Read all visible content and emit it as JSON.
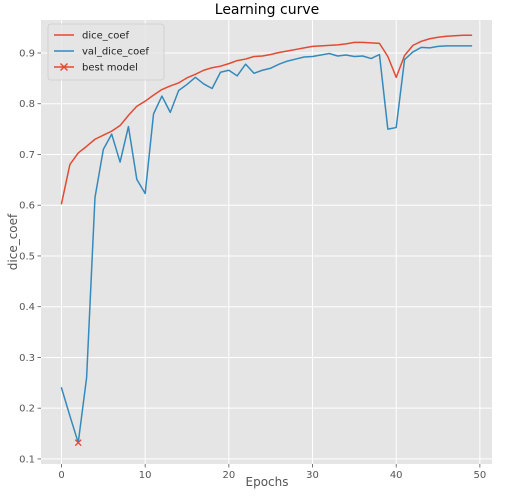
{
  "chart_data": {
    "type": "line",
    "title": "Learning curve",
    "xlabel": "Epochs",
    "ylabel": "dice_coef",
    "xlim": [
      -2.45,
      51.45
    ],
    "ylim": [
      0.09,
      0.965
    ],
    "xticks": [
      0,
      10,
      20,
      30,
      40,
      50
    ],
    "yticks": [
      0.1,
      0.2,
      0.3,
      0.4,
      0.5,
      0.6,
      0.7,
      0.8,
      0.9
    ],
    "grid": true,
    "legend_position": "top-left",
    "series": [
      {
        "name": "dice_coef",
        "color": "#E24A33",
        "x": [
          0,
          1,
          2,
          3,
          4,
          5,
          6,
          7,
          8,
          9,
          10,
          11,
          12,
          13,
          14,
          15,
          16,
          17,
          18,
          19,
          20,
          21,
          22,
          23,
          24,
          25,
          26,
          27,
          28,
          29,
          30,
          31,
          32,
          33,
          34,
          35,
          36,
          37,
          38,
          39,
          40,
          41,
          42,
          43,
          44,
          45,
          46,
          47,
          48,
          49
        ],
        "y": [
          0.603,
          0.68,
          0.703,
          0.716,
          0.73,
          0.738,
          0.746,
          0.757,
          0.777,
          0.795,
          0.805,
          0.817,
          0.828,
          0.835,
          0.841,
          0.851,
          0.858,
          0.866,
          0.871,
          0.874,
          0.879,
          0.885,
          0.888,
          0.893,
          0.894,
          0.897,
          0.901,
          0.904,
          0.907,
          0.91,
          0.913,
          0.914,
          0.915,
          0.916,
          0.918,
          0.921,
          0.921,
          0.92,
          0.919,
          0.893,
          0.852,
          0.895,
          0.915,
          0.923,
          0.928,
          0.931,
          0.933,
          0.934,
          0.935,
          0.935
        ]
      },
      {
        "name": "val_dice_coef",
        "color": "#348ABD",
        "x": [
          0,
          1,
          2,
          3,
          4,
          5,
          6,
          7,
          8,
          9,
          10,
          11,
          12,
          13,
          14,
          15,
          16,
          17,
          18,
          19,
          20,
          21,
          22,
          23,
          24,
          25,
          26,
          27,
          28,
          29,
          30,
          31,
          32,
          33,
          34,
          35,
          36,
          37,
          38,
          39,
          40,
          41,
          42,
          43,
          44,
          45,
          46,
          47,
          48,
          49
        ],
        "y": [
          0.24,
          0.185,
          0.132,
          0.26,
          0.615,
          0.71,
          0.74,
          0.685,
          0.755,
          0.651,
          0.623,
          0.78,
          0.815,
          0.783,
          0.826,
          0.838,
          0.852,
          0.839,
          0.83,
          0.862,
          0.866,
          0.855,
          0.878,
          0.86,
          0.866,
          0.87,
          0.878,
          0.884,
          0.888,
          0.892,
          0.893,
          0.896,
          0.899,
          0.894,
          0.896,
          0.893,
          0.894,
          0.889,
          0.897,
          0.75,
          0.753,
          0.887,
          0.902,
          0.911,
          0.91,
          0.913,
          0.914,
          0.914,
          0.914,
          0.914
        ]
      }
    ],
    "markers": [
      {
        "name": "best model",
        "color": "#E24A33",
        "symbol": "x",
        "x": 2,
        "y": 0.132
      }
    ]
  }
}
